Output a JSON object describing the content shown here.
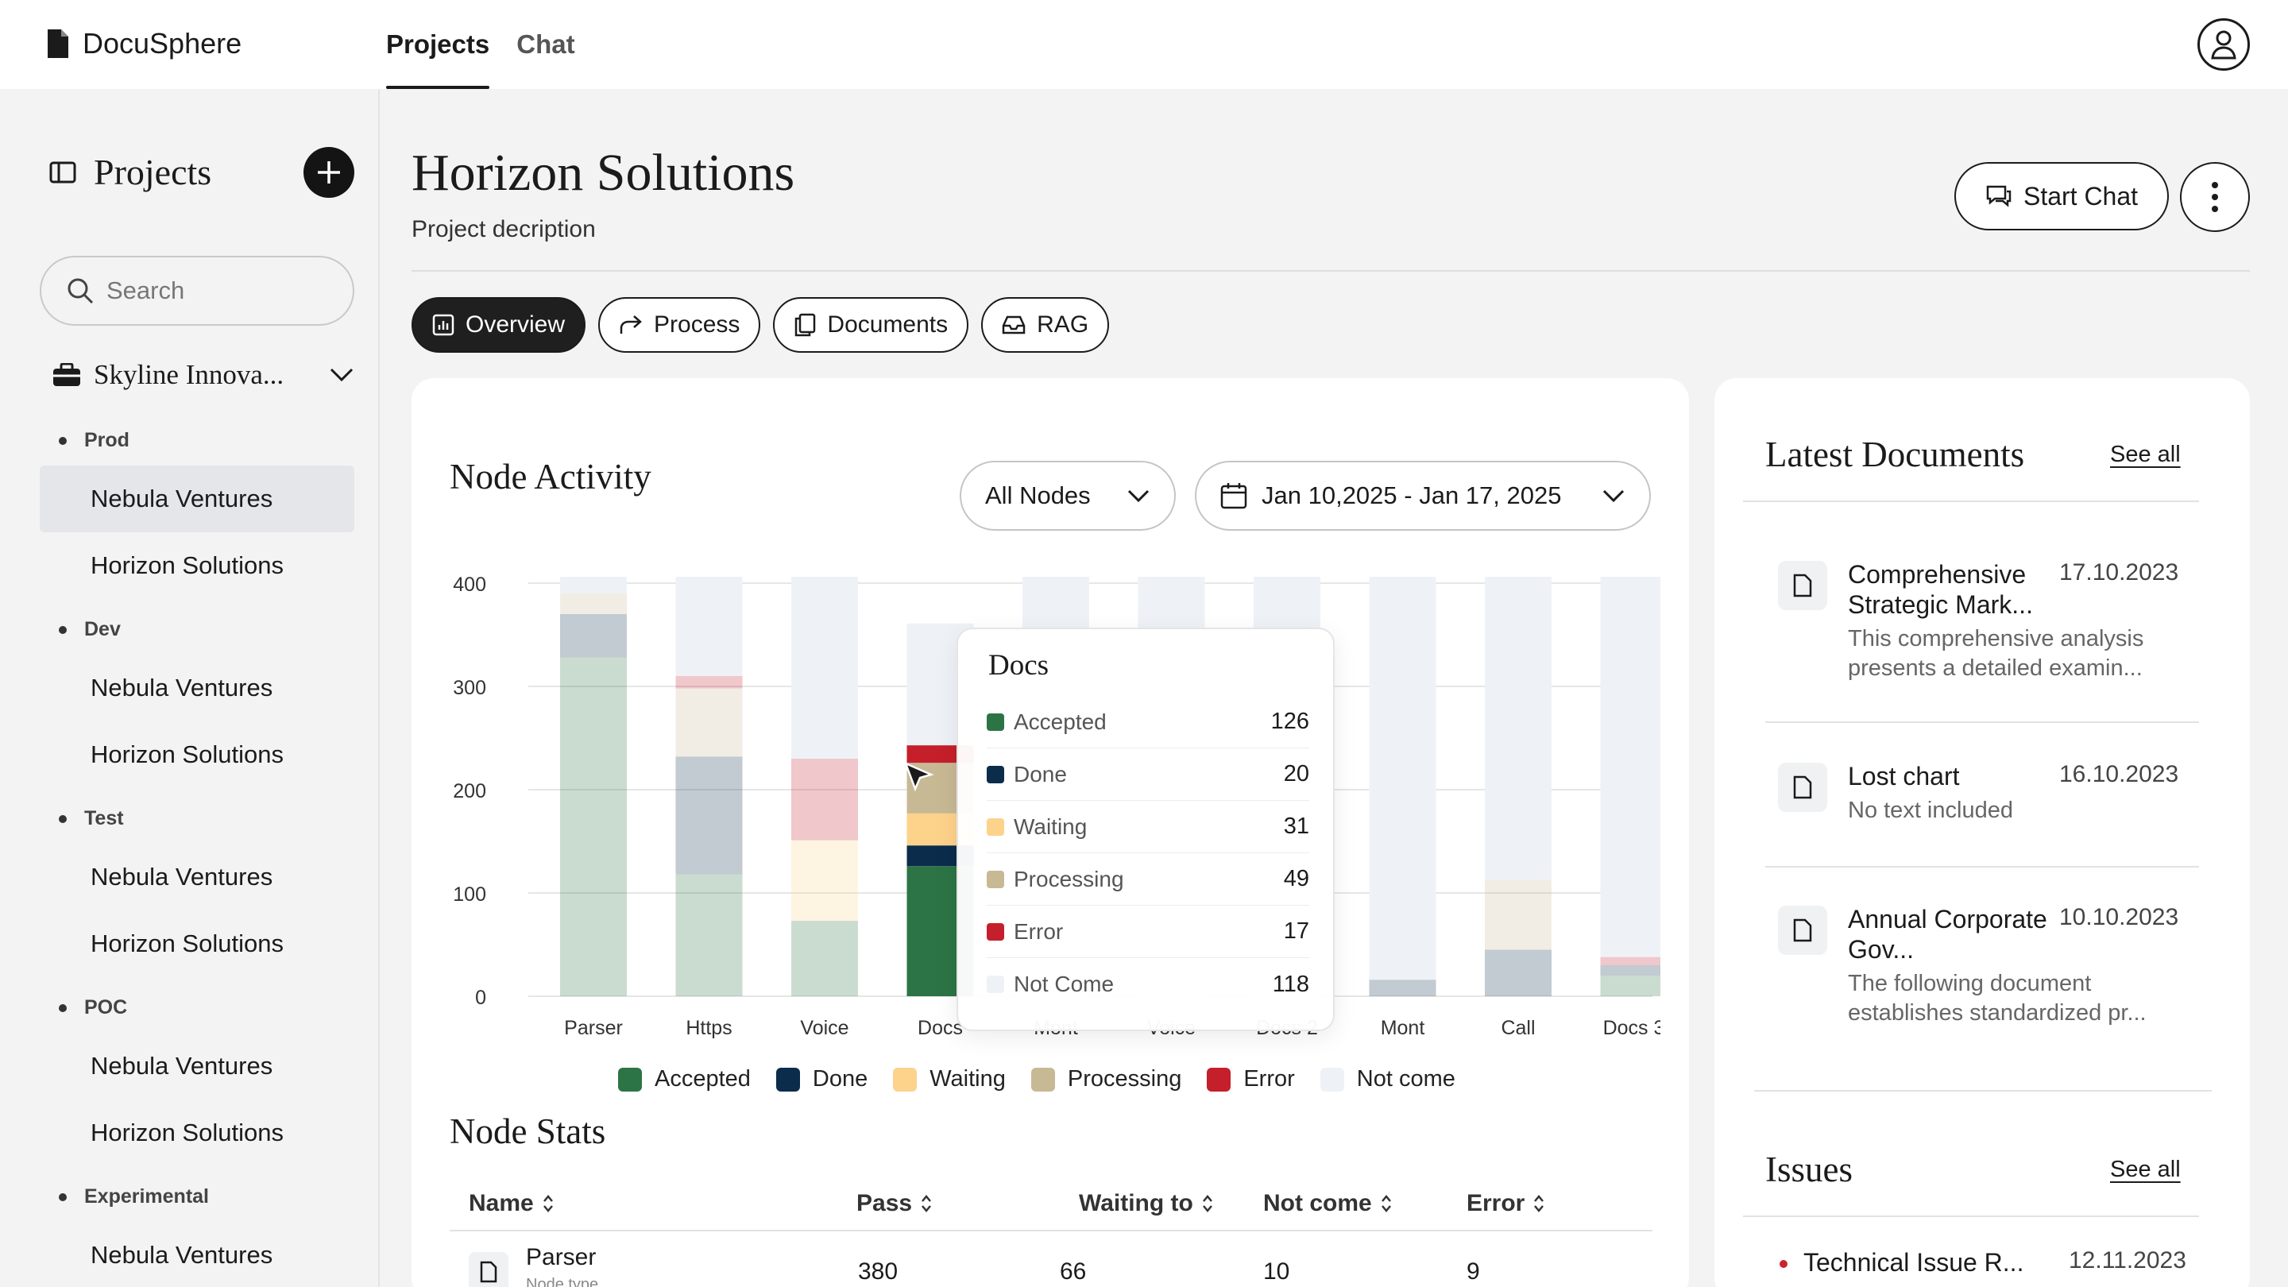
{
  "app": {
    "name": "DocuSphere",
    "top_tabs": [
      "Projects",
      "Chat"
    ]
  },
  "sidebar": {
    "title": "Projects",
    "search_placeholder": "Search",
    "workspace": "Skyline Innova...",
    "groups": [
      {
        "label": "Prod",
        "items": [
          "Nebula Ventures",
          "Horizon Solutions"
        ]
      },
      {
        "label": "Dev",
        "items": [
          "Nebula Ventures",
          "Horizon Solutions"
        ]
      },
      {
        "label": "Test",
        "items": [
          "Nebula Ventures",
          "Horizon Solutions"
        ]
      },
      {
        "label": "POC",
        "items": [
          "Nebula Ventures",
          "Horizon Solutions"
        ]
      },
      {
        "label": "Experimental",
        "items": [
          "Nebula Ventures"
        ]
      }
    ]
  },
  "header": {
    "title": "Horizon Solutions",
    "description": "Project decription",
    "start_chat": "Start Chat",
    "tabs": [
      "Overview",
      "Process",
      "Documents",
      "RAG"
    ]
  },
  "node_activity": {
    "title": "Node Activity",
    "filter": "All Nodes",
    "date_range": "Jan 10,2025 - Jan 17, 2025"
  },
  "chart_data": {
    "type": "bar",
    "stacked": true,
    "categories": [
      "Parser",
      "Https",
      "Voice",
      "Docs",
      "Mont",
      "Voice",
      "Docs 2",
      "Mont",
      "Call",
      "Docs 3"
    ],
    "ylim": [
      0,
      400
    ],
    "yticks": [
      0,
      100,
      200,
      300,
      400
    ],
    "grid": true,
    "legend_position": "bottom",
    "series": [
      {
        "name": "Accepted",
        "color": "#2c7445",
        "values": [
          328,
          118,
          73,
          126,
          0,
          0,
          0,
          0,
          0,
          20
        ]
      },
      {
        "name": "Done",
        "color": "#0b2c4b",
        "values": [
          42,
          114,
          0,
          20,
          0,
          0,
          0,
          16,
          45,
          10
        ]
      },
      {
        "name": "Waiting",
        "color": "#fdd28b",
        "values": [
          0,
          0,
          78,
          31,
          0,
          0,
          0,
          0,
          0,
          0
        ]
      },
      {
        "name": "Processing",
        "color": "#c8b995",
        "values": [
          20,
          66,
          0,
          49,
          0,
          0,
          0,
          0,
          68,
          0
        ]
      },
      {
        "name": "Error",
        "color": "#c51f2b",
        "values": [
          0,
          12,
          79,
          17,
          0,
          0,
          0,
          0,
          0,
          8
        ]
      },
      {
        "name": "Not come",
        "color": "#eef2f7",
        "values": [
          20,
          100,
          180,
          118,
          410,
          410,
          410,
          394,
          297,
          372
        ]
      }
    ],
    "faded_categories": [
      "Parser",
      "Https",
      "Voice",
      "Mont",
      "Voice",
      "Docs 2",
      "Mont",
      "Call",
      "Docs 3"
    ],
    "highlighted_category": "Docs"
  },
  "tooltip": {
    "title": "Docs",
    "rows": [
      {
        "label": "Accepted",
        "value": "126"
      },
      {
        "label": "Done",
        "value": "20"
      },
      {
        "label": "Waiting",
        "value": "31"
      },
      {
        "label": "Processing",
        "value": "49"
      },
      {
        "label": "Error",
        "value": "17"
      },
      {
        "label": "Not Come",
        "value": "118"
      }
    ]
  },
  "legend": [
    "Accepted",
    "Done",
    "Waiting",
    "Processing",
    "Error",
    "Not come"
  ],
  "node_stats": {
    "title": "Node Stats",
    "columns": [
      "Name",
      "Pass",
      "Waiting to",
      "Not come",
      "Error"
    ],
    "rows": [
      {
        "name": "Parser",
        "sub": "Node type",
        "pass": "380",
        "waiting": "66",
        "not_come": "10",
        "error": "9"
      }
    ]
  },
  "latest_documents": {
    "title": "Latest Documents",
    "see_all": "See all",
    "items": [
      {
        "title": "Comprehensive Strategic Mark...",
        "date": "17.10.2023",
        "desc": "This comprehensive analysis presents a detailed examin..."
      },
      {
        "title": "Lost chart",
        "date": "16.10.2023",
        "desc": "No text included"
      },
      {
        "title": "Annual Corporate Gov...",
        "date": "10.10.2023",
        "desc": "The following document establishes standardized pr..."
      }
    ]
  },
  "issues": {
    "title": "Issues",
    "see_all": "See all",
    "items": [
      {
        "title": "Technical Issue R...",
        "date": "12.11.2023"
      }
    ]
  }
}
